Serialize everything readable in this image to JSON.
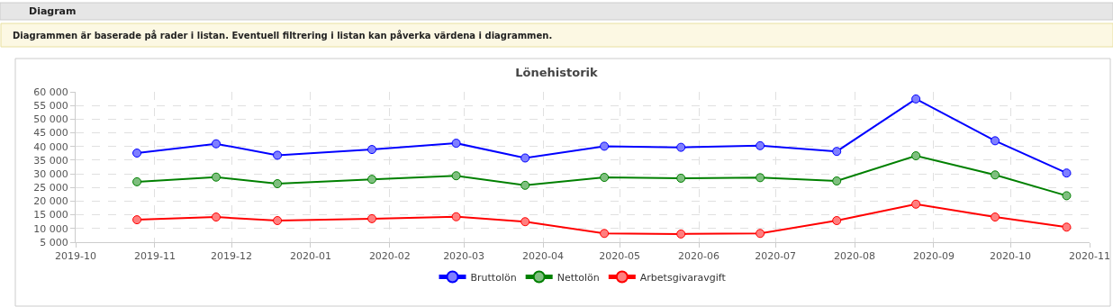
{
  "chart_data": {
    "type": "line",
    "title": "Lönehistorik",
    "annotations": [
      "Diagram",
      "Diagrammen är baserade på rader i listan. Eventuell filtrering i listan kan påverka värdena i diagrammen."
    ],
    "x": [
      "2019-10-25",
      "2019-11-25",
      "2019-12-19",
      "2020-01-25",
      "2020-02-27",
      "2020-03-25",
      "2020-04-25",
      "2020-05-25",
      "2020-06-25",
      "2020-07-25",
      "2020-08-25",
      "2020-09-25",
      "2020-10-23"
    ],
    "series": [
      {
        "name": "Bruttolön",
        "color": "#0000ff",
        "values": [
          37600,
          41000,
          36800,
          38900,
          41200,
          35800,
          40100,
          39700,
          40300,
          38200,
          57400,
          42100,
          30300
        ]
      },
      {
        "name": "Nettolön",
        "color": "#008000",
        "values": [
          27100,
          28800,
          26400,
          28000,
          29300,
          25800,
          28700,
          28400,
          28600,
          27400,
          36600,
          29600,
          22000
        ]
      },
      {
        "name": "Arbetsgivaravgift",
        "color": "#ff0000",
        "values": [
          13200,
          14200,
          12900,
          13600,
          14300,
          12500,
          8200,
          8000,
          8200,
          12900,
          18900,
          14200,
          10500
        ]
      }
    ],
    "xlim": [
      "2019-10",
      "2020-11"
    ],
    "xticks": [
      "2019-10",
      "2019-11",
      "2019-12",
      "2020-01",
      "2020-02",
      "2020-03",
      "2020-04",
      "2020-05",
      "2020-06",
      "2020-07",
      "2020-08",
      "2020-09",
      "2020-10",
      "2020-11"
    ],
    "ylim": [
      5000,
      60000
    ],
    "yticks": [
      {
        "value": 5000,
        "label": "5 000"
      },
      {
        "value": 10000,
        "label": "10 000"
      },
      {
        "value": 15000,
        "label": "15 000"
      },
      {
        "value": 20000,
        "label": "20 000"
      },
      {
        "value": 25000,
        "label": "25 000"
      },
      {
        "value": 30000,
        "label": "30 000"
      },
      {
        "value": 35000,
        "label": "35 000"
      },
      {
        "value": 40000,
        "label": "40 000"
      },
      {
        "value": 45000,
        "label": "45 000"
      },
      {
        "value": 50000,
        "label": "50 000"
      },
      {
        "value": 55000,
        "label": "55 000"
      },
      {
        "value": 60000,
        "label": "60 000"
      }
    ],
    "grid": true,
    "legend": "bottom",
    "marker": "circle",
    "line_style": "solid"
  }
}
